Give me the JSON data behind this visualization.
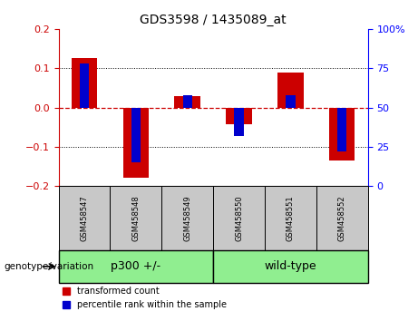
{
  "title": "GDS3598 / 1435089_at",
  "categories": [
    "GSM458547",
    "GSM458548",
    "GSM458549",
    "GSM458550",
    "GSM458551",
    "GSM458552"
  ],
  "red_values": [
    0.125,
    -0.178,
    0.03,
    -0.042,
    0.088,
    -0.135
  ],
  "blue_values_pct": [
    78,
    15,
    58,
    32,
    58,
    22
  ],
  "ylim_left": [
    -0.2,
    0.2
  ],
  "ylim_right": [
    0,
    100
  ],
  "yticks_left": [
    -0.2,
    -0.1,
    0.0,
    0.1,
    0.2
  ],
  "yticks_right": [
    0,
    25,
    50,
    75,
    100
  ],
  "groups": [
    {
      "label": "p300 +/-",
      "span": [
        0,
        3
      ],
      "color": "#90ee90"
    },
    {
      "label": "wild-type",
      "span": [
        3,
        6
      ],
      "color": "#90ee90"
    }
  ],
  "group_label": "genotype/variation",
  "legend_red": "transformed count",
  "legend_blue": "percentile rank within the sample",
  "red_bar_width": 0.5,
  "blue_bar_width": 0.18,
  "red_color": "#cc0000",
  "blue_color": "#0000cc",
  "hline_color": "#cc0000",
  "dot_color": "black",
  "left_tick_color": "#cc0000",
  "right_tick_color": "#0000ff",
  "xlabel_bg": "#c8c8c8"
}
